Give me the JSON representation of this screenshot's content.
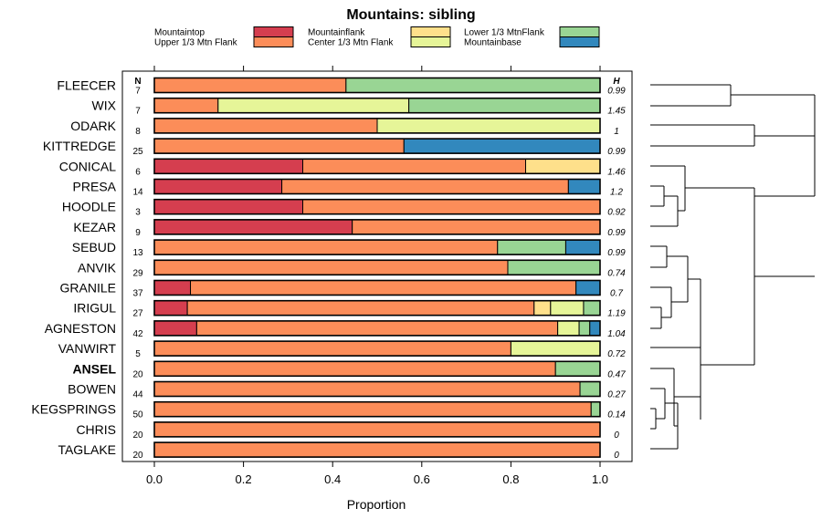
{
  "chart_data": {
    "type": "bar",
    "orientation": "horizontal",
    "stacked": true,
    "title": "Mountains: sibling",
    "xlabel": "Proportion",
    "ylabel": "",
    "xlim": [
      0,
      1
    ],
    "xticks": [
      "0.0",
      "0.2",
      "0.4",
      "0.6",
      "0.8",
      "1.0"
    ],
    "n_header": "N",
    "h_header": "H",
    "highlight_row": "ANSEL",
    "legend": [
      {
        "name": "Mountaintop",
        "color": "#d53e4f"
      },
      {
        "name": "Upper 1/3 Mtn Flank",
        "color": "#fc8d59"
      },
      {
        "name": "Mountainflank",
        "color": "#fee08b"
      },
      {
        "name": "Center 1/3 Mtn Flank",
        "color": "#e6f598"
      },
      {
        "name": "Lower 1/3 MtnFlank",
        "color": "#99d594"
      },
      {
        "name": "Mountainbase",
        "color": "#3288bd"
      }
    ],
    "rows": [
      {
        "name": "FLEECER",
        "n": "7",
        "h": "0.99",
        "values": [
          0,
          0.43,
          0,
          0,
          0.57,
          0
        ]
      },
      {
        "name": "WIX",
        "n": "7",
        "h": "1.45",
        "values": [
          0,
          0.143,
          0,
          0.428,
          0.429,
          0
        ]
      },
      {
        "name": "ODARK",
        "n": "8",
        "h": "1",
        "values": [
          0,
          0.5,
          0,
          0.5,
          0,
          0
        ]
      },
      {
        "name": "KITTREDGE",
        "n": "25",
        "h": "0.99",
        "values": [
          0,
          0.56,
          0,
          0,
          0,
          0.44
        ]
      },
      {
        "name": "CONICAL",
        "n": "6",
        "h": "1.46",
        "values": [
          0.333,
          0.5,
          0.167,
          0,
          0,
          0
        ]
      },
      {
        "name": "PRESA",
        "n": "14",
        "h": "1.2",
        "values": [
          0.286,
          0.643,
          0,
          0,
          0,
          0.071
        ]
      },
      {
        "name": "HOODLE",
        "n": "3",
        "h": "0.92",
        "values": [
          0.333,
          0.667,
          0,
          0,
          0,
          0
        ]
      },
      {
        "name": "KEZAR",
        "n": "9",
        "h": "0.99",
        "values": [
          0.444,
          0.556,
          0,
          0,
          0,
          0
        ]
      },
      {
        "name": "SEBUD",
        "n": "13",
        "h": "0.99",
        "values": [
          0,
          0.77,
          0,
          0,
          0.153,
          0.077
        ]
      },
      {
        "name": "ANVIK",
        "n": "29",
        "h": "0.74",
        "values": [
          0,
          0.793,
          0,
          0,
          0.207,
          0
        ]
      },
      {
        "name": "GRANILE",
        "n": "37",
        "h": "0.7",
        "values": [
          0.081,
          0.865,
          0,
          0,
          0,
          0.054
        ]
      },
      {
        "name": "IRIGUL",
        "n": "27",
        "h": "1.19",
        "values": [
          0.074,
          0.778,
          0.037,
          0.074,
          0.037,
          0
        ]
      },
      {
        "name": "AGNESTON",
        "n": "42",
        "h": "1.04",
        "values": [
          0.095,
          0.81,
          0,
          0.048,
          0.024,
          0.023
        ]
      },
      {
        "name": "VANWIRT",
        "n": "5",
        "h": "0.72",
        "values": [
          0,
          0.8,
          0,
          0.2,
          0,
          0
        ]
      },
      {
        "name": "ANSEL",
        "n": "20",
        "h": "0.47",
        "values": [
          0,
          0.9,
          0,
          0,
          0.1,
          0
        ]
      },
      {
        "name": "BOWEN",
        "n": "44",
        "h": "0.27",
        "values": [
          0,
          0.955,
          0,
          0,
          0.045,
          0
        ]
      },
      {
        "name": "KEGSPRINGS",
        "n": "50",
        "h": "0.14",
        "values": [
          0,
          0.98,
          0,
          0,
          0.02,
          0
        ]
      },
      {
        "name": "CHRIS",
        "n": "20",
        "h": "0",
        "values": [
          0,
          1,
          0,
          0,
          0,
          0
        ]
      },
      {
        "name": "TAGLAKE",
        "n": "20",
        "h": "0",
        "values": [
          0,
          1,
          0,
          0,
          0,
          0
        ]
      }
    ]
  }
}
